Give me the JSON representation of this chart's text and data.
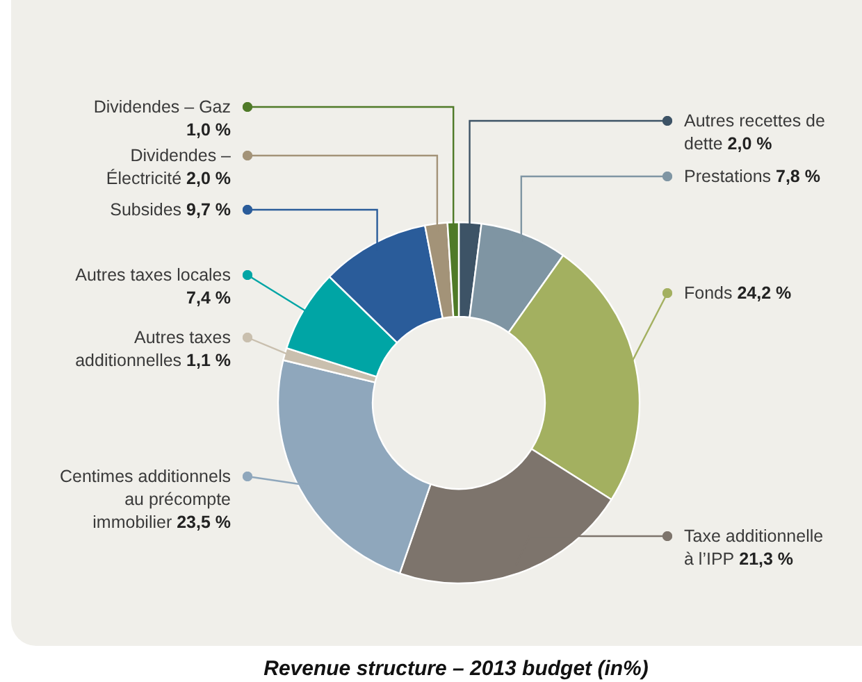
{
  "chart_data": {
    "type": "donut",
    "title": "Revenue structure – 2013 budget (in%)",
    "categories": [
      "Autres recettes de dette",
      "Prestations",
      "Fonds",
      "Taxe additionnelle à l’IPP",
      "Centimes additionnels au précompte immobilier",
      "Autres taxes additionnelles",
      "Autres taxes locales",
      "Subsides",
      "Dividendes – Électricité",
      "Dividendes – Gaz"
    ],
    "values": [
      2.0,
      7.8,
      24.2,
      21.3,
      23.5,
      1.1,
      7.4,
      9.7,
      2.0,
      1.0
    ],
    "value_labels": [
      "2,0 %",
      "7,8 %",
      "24,2 %",
      "21,3 %",
      "23,5 %",
      "1,1 %",
      "7,4 %",
      "9,7 %",
      "2,0 %",
      "1,0 %"
    ],
    "colors": [
      "#3d5366",
      "#7f95a3",
      "#a3b060",
      "#7d746c",
      "#8fa7bc",
      "#c9bfae",
      "#00a5a5",
      "#2a5c9a",
      "#a39378",
      "#4f7a28"
    ]
  }
}
